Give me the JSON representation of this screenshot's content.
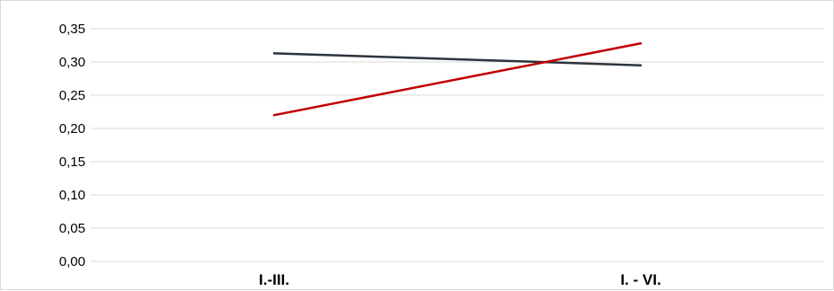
{
  "chart_data": {
    "type": "line",
    "title": "",
    "xlabel": "",
    "ylabel": "",
    "categories": [
      "I.-III.",
      "I. - VI."
    ],
    "ylim": [
      0,
      0.35
    ],
    "y_tick_values": [
      0,
      0.05,
      0.1,
      0.15,
      0.2,
      0.25,
      0.3,
      0.35
    ],
    "y_tick_labels": [
      "0,00",
      "0,05",
      "0,10",
      "0,15",
      "0,20",
      "0,25",
      "0,30",
      "0,35"
    ],
    "grid": true,
    "legend": "none",
    "series": [
      {
        "values": [
          0.313,
          0.295
        ],
        "color": "#2b333d"
      },
      {
        "values": [
          0.22,
          0.328
        ],
        "color": "#c00000"
      }
    ]
  }
}
